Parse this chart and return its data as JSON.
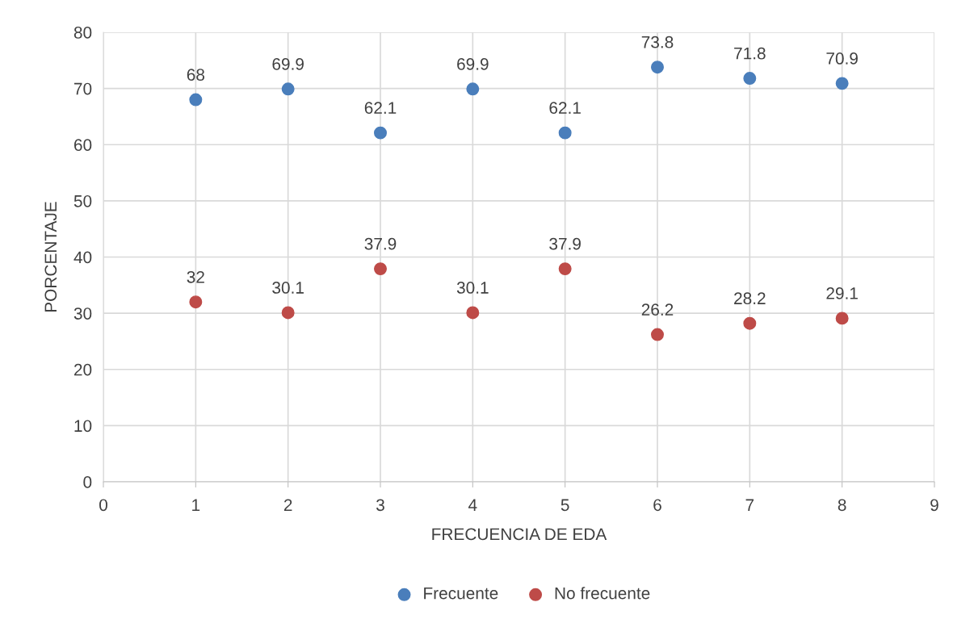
{
  "chart_data": {
    "type": "scatter",
    "xlabel": "FRECUENCIA DE EDA",
    "ylabel": "PORCENTAJE",
    "x": [
      1,
      2,
      3,
      4,
      5,
      6,
      7,
      8
    ],
    "series": [
      {
        "name": "Frecuente",
        "color": "#4a7ebb",
        "values": [
          68,
          69.9,
          62.1,
          69.9,
          62.1,
          73.8,
          71.8,
          70.9
        ]
      },
      {
        "name": "No frecuente",
        "color": "#be4b48",
        "values": [
          32,
          30.1,
          37.9,
          30.1,
          37.9,
          26.2,
          28.2,
          29.1
        ]
      }
    ],
    "xlim": [
      0,
      9
    ],
    "xticks": [
      0,
      1,
      2,
      3,
      4,
      5,
      6,
      7,
      8,
      9
    ],
    "ylim": [
      0,
      80
    ],
    "yticks": [
      0,
      10,
      20,
      30,
      40,
      50,
      60,
      70,
      80
    ],
    "grid": true,
    "legend": "bottom",
    "marker": "circle",
    "data_labels": true
  }
}
